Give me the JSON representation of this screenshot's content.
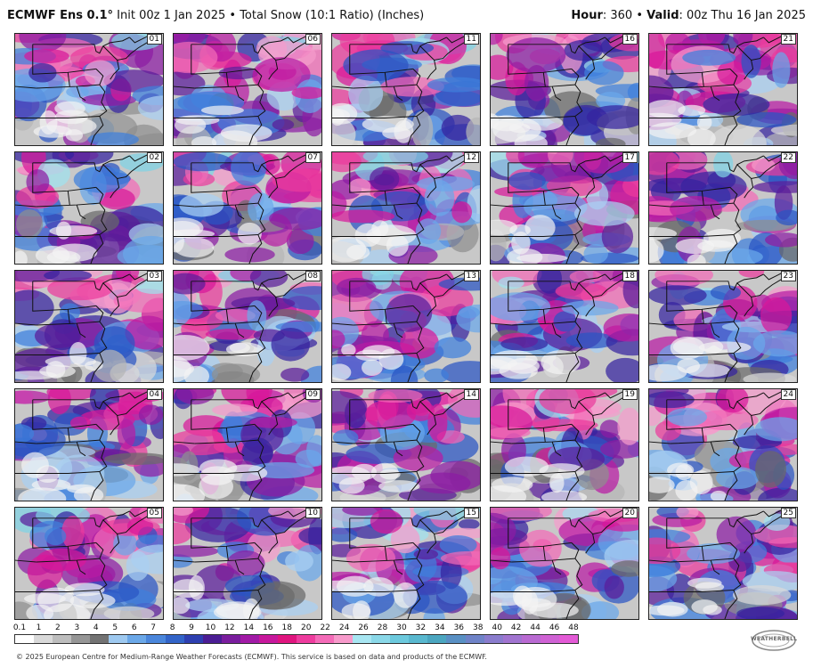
{
  "header": {
    "model": "ECMWF Ens 0.1°",
    "init": "Init 00z 1 Jan 2025",
    "separator": "•",
    "product": "Total Snow (10:1 Ratio) (Inches)",
    "hour_label": "Hour",
    "hour_value": ": 360",
    "valid_label": "Valid",
    "valid_value": ": 00z Thu 16 Jan 2025"
  },
  "members": [
    "01",
    "06",
    "11",
    "16",
    "21",
    "02",
    "07",
    "12",
    "17",
    "22",
    "03",
    "08",
    "13",
    "18",
    "23",
    "04",
    "09",
    "14",
    "19",
    "24",
    "05",
    "10",
    "15",
    "20",
    "25"
  ],
  "legend": {
    "ticks": [
      "0.1",
      "1",
      "2",
      "3",
      "4",
      "5",
      "6",
      "7",
      "8",
      "9",
      "10",
      "12",
      "14",
      "16",
      "18",
      "20",
      "22",
      "24",
      "26",
      "28",
      "30",
      "32",
      "34",
      "36",
      "38",
      "40",
      "42",
      "44",
      "46",
      "48"
    ],
    "colors": [
      "#ffffff",
      "#d9d9d9",
      "#bdbdbd",
      "#969696",
      "#737373",
      "#9ec9f0",
      "#6ba8e8",
      "#4a86db",
      "#3264c8",
      "#2e3fb0",
      "#4b1d94",
      "#7a1d9e",
      "#a11aa6",
      "#c7189c",
      "#e0157f",
      "#ee3c9e",
      "#f46bb8",
      "#f79acb",
      "#a8e6f2",
      "#8ad8e8",
      "#6cc9dd",
      "#59b8cf",
      "#4ba6c0",
      "#5990c4",
      "#6f83c8",
      "#8a7ccd",
      "#a174d0",
      "#b96ad2",
      "#cf62d4",
      "#e35ad6"
    ]
  },
  "footer": "© 2025 European Centre for Medium-Range Weather Forecasts (ECMWF). This service is based on data and products of the ECMWF.",
  "logo_text": "WEATHERBELL"
}
